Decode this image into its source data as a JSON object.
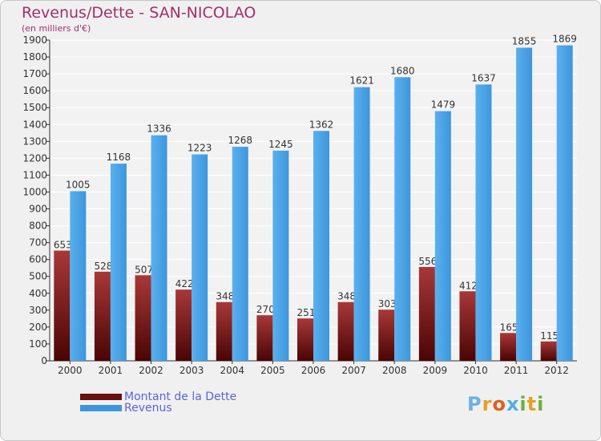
{
  "header": {
    "title": "Revenus/Dette - SAN-NICOLAO",
    "subtitle": "(en milliers d'€)"
  },
  "legend": {
    "debt_label": "Montant de la Dette",
    "revenue_label": "Revenus"
  },
  "logo": {
    "text": "Proxiti"
  },
  "colors": {
    "debt": "#7a1414",
    "debt_light": "#a83838",
    "revenue": "#3d96dc",
    "revenue_light": "#5ab0ee"
  },
  "chart_data": {
    "type": "bar",
    "categories": [
      "2000",
      "2001",
      "2002",
      "2003",
      "2004",
      "2005",
      "2006",
      "2007",
      "2008",
      "2009",
      "2010",
      "2011",
      "2012"
    ],
    "series": [
      {
        "name": "Montant de la Dette",
        "values": [
          653,
          528,
          507,
          422,
          348,
          270,
          251,
          348,
          303,
          556,
          412,
          165,
          115
        ]
      },
      {
        "name": "Revenus",
        "values": [
          1005,
          1168,
          1336,
          1223,
          1268,
          1245,
          1362,
          1621,
          1680,
          1479,
          1637,
          1855,
          1869
        ]
      }
    ],
    "ylim": [
      0,
      1900
    ],
    "yticks": [
      "0",
      "100",
      "200",
      "300",
      "400",
      "500",
      "600",
      "700",
      "800",
      "900",
      "1000",
      "1100",
      "1200",
      "1300",
      "1400",
      "1500",
      "1600",
      "1700",
      "1800",
      "1900"
    ],
    "grid": true,
    "legend_position": "bottom-left"
  }
}
